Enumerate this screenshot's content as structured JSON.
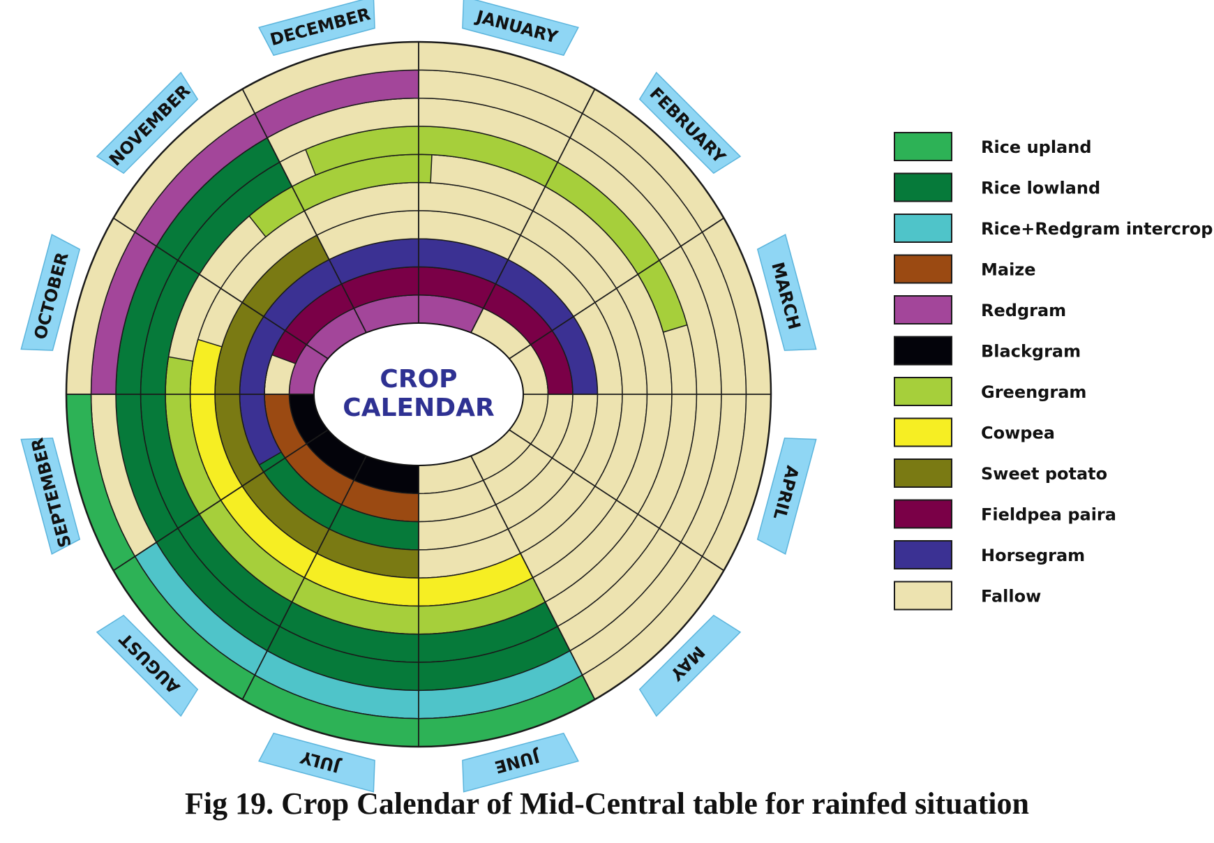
{
  "center_title": [
    "CROP",
    "CALENDAR"
  ],
  "caption": "Fig 19. Crop Calendar of Mid-Central table for rainfed situation",
  "months": [
    "JANUARY",
    "FEBRUARY",
    "MARCH",
    "APRIL",
    "MAY",
    "JUNE",
    "JULY",
    "AUGUST",
    "SEPTEMBER",
    "OCTOBER",
    "NOVEMBER",
    "DECEMBER"
  ],
  "legend": [
    {
      "key": "rice_upland",
      "label": "Rice upland",
      "color": "#2db256"
    },
    {
      "key": "rice_lowland",
      "label": "Rice lowland",
      "color": "#067a3a"
    },
    {
      "key": "rice_redgram",
      "label": "Rice+Redgram intercrop",
      "color": "#4fc4c9"
    },
    {
      "key": "maize",
      "label": "Maize",
      "color": "#9b4a12"
    },
    {
      "key": "redgram",
      "label": "Redgram",
      "color": "#a3469a"
    },
    {
      "key": "blackgram",
      "label": "Blackgram",
      "color": "#03030a"
    },
    {
      "key": "greengram",
      "label": "Greengram",
      "color": "#a6cf3b"
    },
    {
      "key": "cowpea",
      "label": "Cowpea",
      "color": "#f6ee23"
    },
    {
      "key": "sweet_potato",
      "label": "Sweet potato",
      "color": "#7a7a13"
    },
    {
      "key": "fieldpea_paira",
      "label": "Fieldpea paira",
      "color": "#7a0047"
    },
    {
      "key": "horsegram",
      "label": "Horsegram",
      "color": "#3b3193"
    },
    {
      "key": "fallow",
      "label": "Fallow",
      "color": "#ede3b0"
    }
  ],
  "rings": [
    {
      "ring": 1,
      "crops": [
        {
          "crop": "redgram",
          "start_month": 6,
          "end_month": 13
        },
        {
          "crop": "blackgram",
          "start_month": 6,
          "end_month": 9
        }
      ]
    },
    {
      "ring": 2,
      "crops": [
        {
          "crop": "maize",
          "start_month": 6,
          "end_month": 9
        },
        {
          "crop": "fieldpea_paira",
          "start_month": 9.6,
          "end_month": 15
        }
      ]
    },
    {
      "ring": 3,
      "crops": [
        {
          "crop": "rice_lowland",
          "start_month": 6,
          "end_month": 10.4
        },
        {
          "crop": "horsegram",
          "start_month": 8.1,
          "end_month": 15
        }
      ]
    },
    {
      "ring": 4,
      "crops": [
        {
          "crop": "sweet_potato",
          "start_month": 6,
          "end_month": 11
        }
      ]
    },
    {
      "ring": 5,
      "crops": [
        {
          "crop": "cowpea",
          "start_month": 5,
          "end_month": 9.5
        }
      ]
    },
    {
      "ring": 6,
      "crops": [
        {
          "crop": "greengram",
          "start_month": 5,
          "end_month": 9.3
        },
        {
          "crop": "greengram",
          "start_month": 10.6,
          "end_month": 12.1
        }
      ]
    },
    {
      "ring": 7,
      "crops": [
        {
          "crop": "rice_lowland",
          "start_month": 5,
          "end_month": 11
        },
        {
          "crop": "greengram",
          "start_month": 11.2,
          "end_month": 14.5
        }
      ]
    },
    {
      "ring": 8,
      "crops": [
        {
          "crop": "rice_lowland",
          "start_month": 5,
          "end_month": 11
        }
      ]
    },
    {
      "ring": 9,
      "crops": [
        {
          "crop": "rice_redgram",
          "start_month": 5,
          "end_month": 8
        },
        {
          "crop": "redgram",
          "start_month": 9,
          "end_month": 12
        }
      ]
    },
    {
      "ring": 10,
      "crops": [
        {
          "crop": "rice_upland",
          "start_month": 5,
          "end_month": 9
        }
      ]
    }
  ]
}
